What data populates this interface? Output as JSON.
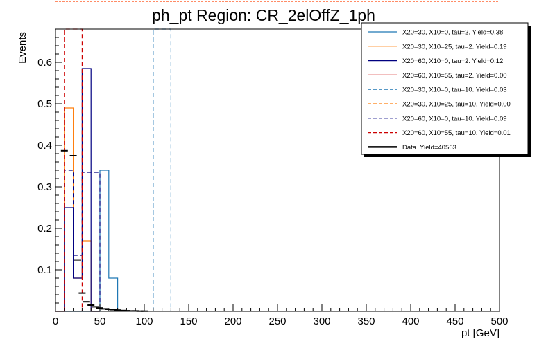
{
  "chart_data": {
    "type": "histogram",
    "title": "ph_pt Region: CR_2elOffZ_1ph",
    "xlabel": "pt [GeV]",
    "ylabel": "Events",
    "xlim": [
      0,
      500
    ],
    "ylim": [
      0,
      0.68
    ],
    "x_ticks": [
      0,
      50,
      100,
      150,
      200,
      250,
      300,
      350,
      400,
      450,
      500
    ],
    "y_ticks": [
      0.1,
      0.2,
      0.3,
      0.4,
      0.5,
      0.6
    ],
    "legend_position": "top-right",
    "series": [
      {
        "name": "X20=30, X10=0, tau=2. Yield=0.38",
        "color": "#1f77b4",
        "style": "solid",
        "bins": [
          [
            10,
            20,
            0.0
          ],
          [
            20,
            30,
            0.0
          ],
          [
            30,
            40,
            0.0
          ],
          [
            40,
            50,
            0.0
          ],
          [
            50,
            60,
            0.34
          ],
          [
            60,
            70,
            0.08
          ]
        ]
      },
      {
        "name": "X20=30, X10=25, tau=2. Yield=0.19",
        "color": "#ff7f0e",
        "style": "solid",
        "bins": [
          [
            0,
            10,
            0.0
          ],
          [
            10,
            20,
            0.49
          ],
          [
            20,
            30,
            0.08
          ],
          [
            30,
            40,
            0.17
          ],
          [
            40,
            50,
            0.0
          ]
        ]
      },
      {
        "name": "X20=60, X10=0, tau=2. Yield=0.12",
        "color": "#000080",
        "style": "solid",
        "bins": [
          [
            0,
            10,
            0.0
          ],
          [
            10,
            20,
            0.25
          ],
          [
            20,
            30,
            0.08
          ],
          [
            30,
            40,
            0.585
          ],
          [
            40,
            50,
            0.0
          ]
        ]
      },
      {
        "name": "X20=60, X10=55, tau=2. Yield=0.00",
        "color": "#cc0000",
        "style": "solid",
        "bins": []
      },
      {
        "name": "X20=30, X10=0, tau=10. Yield=0.03",
        "color": "#1f77b4",
        "style": "dashed",
        "bins": [
          [
            110,
            120,
            0.68
          ],
          [
            120,
            130,
            0.68
          ]
        ]
      },
      {
        "name": "X20=30, X10=25, tau=10. Yield=0.00",
        "color": "#ff7f0e",
        "style": "dashed",
        "bins": []
      },
      {
        "name": "X20=60, X10=0, tau=10. Yield=0.09",
        "color": "#000080",
        "style": "dashed",
        "bins": [
          [
            10,
            20,
            0.34
          ],
          [
            20,
            30,
            0.135
          ],
          [
            30,
            40,
            0.335
          ],
          [
            40,
            50,
            0.335
          ]
        ]
      },
      {
        "name": "X20=60, X10=55, tau=10. Yield=0.01",
        "color": "#cc0000",
        "style": "dashed",
        "bins": [
          [
            10,
            20,
            0.68
          ],
          [
            20,
            30,
            0.68
          ]
        ]
      }
    ],
    "data_points": {
      "name": "Data. Yield=40563",
      "color": "#000000",
      "points": [
        [
          10,
          0.387
        ],
        [
          20,
          0.375
        ],
        [
          25,
          0.124
        ],
        [
          30,
          0.044
        ],
        [
          35,
          0.023
        ],
        [
          40,
          0.015
        ],
        [
          45,
          0.011
        ],
        [
          50,
          0.008
        ],
        [
          55,
          0.006
        ],
        [
          60,
          0.005
        ],
        [
          65,
          0.004
        ],
        [
          70,
          0.003
        ],
        [
          75,
          0.002
        ],
        [
          80,
          0.0015
        ],
        [
          85,
          0.001
        ],
        [
          90,
          0.001
        ],
        [
          95,
          0.0005
        ],
        [
          100,
          0.0005
        ]
      ]
    }
  }
}
